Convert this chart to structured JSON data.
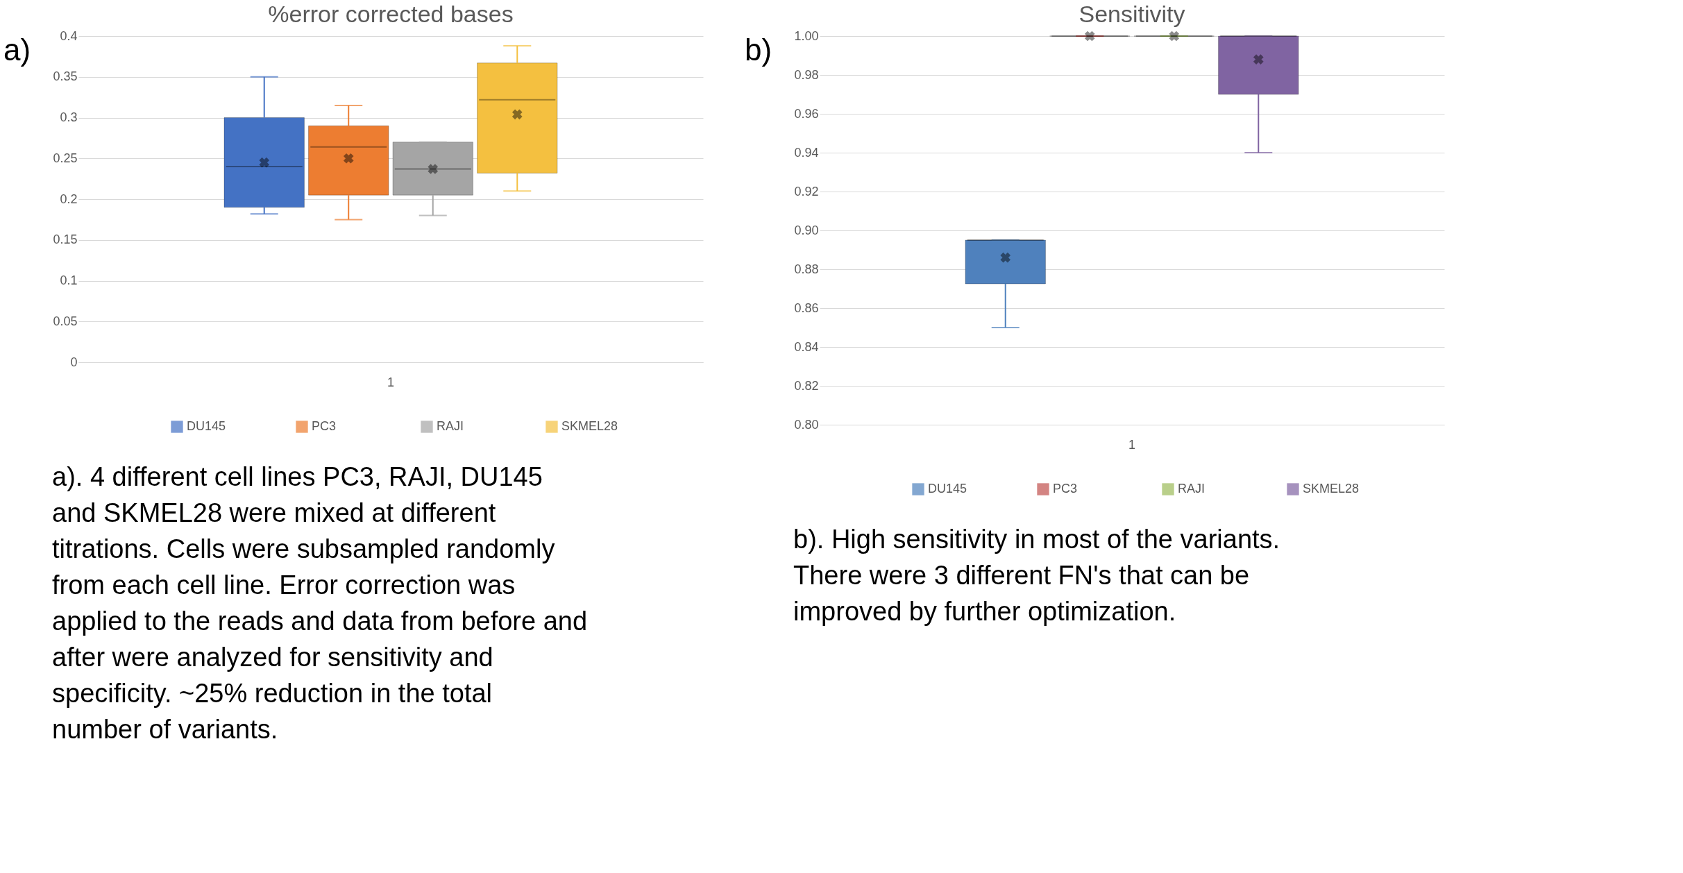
{
  "chart_data": [
    {
      "type": "box",
      "title": "%error corrected bases",
      "categories": [
        "1"
      ],
      "series": [
        {
          "name": "DU145",
          "color": "#4472c4",
          "boxes": [
            {
              "low": 0.182,
              "q1": 0.19,
              "median": 0.24,
              "q3": 0.3,
              "high": 0.35,
              "mean": 0.245
            }
          ]
        },
        {
          "name": "PC3",
          "color": "#ed7d31",
          "boxes": [
            {
              "low": 0.175,
              "q1": 0.205,
              "median": 0.264,
              "q3": 0.29,
              "high": 0.315,
              "mean": 0.25
            }
          ]
        },
        {
          "name": "RAJI",
          "color": "#a5a5a5",
          "boxes": [
            {
              "low": 0.18,
              "q1": 0.205,
              "median": 0.237,
              "q3": 0.27,
              "high": 0.27,
              "mean": 0.237
            }
          ]
        },
        {
          "name": "SKMEL28",
          "color": "#f4c040",
          "boxes": [
            {
              "low": 0.21,
              "q1": 0.232,
              "median": 0.322,
              "q3": 0.367,
              "high": 0.388,
              "mean": 0.304
            }
          ]
        }
      ],
      "ylim": [
        0,
        0.4
      ],
      "yticks": [
        0,
        0.05,
        0.1,
        0.15,
        0.2,
        0.25,
        0.3,
        0.35,
        0.4
      ],
      "grid": "y",
      "legend": "bottom",
      "annotations": [
        "a)",
        "a). 4 different cell lines PC3, RAJI, DU145 and SKMEL28 were mixed at different titrations. Cells were subsampled randomly from each cell line. Error correction was applied to the reads and data from before and after were analyzed for sensitivity and specificity. ~25% reduction in the total number of variants."
      ]
    },
    {
      "type": "box",
      "title": "Sensitivity",
      "categories": [
        "1"
      ],
      "series": [
        {
          "name": "DU145",
          "color": "#4f81bd",
          "boxes": [
            {
              "low": 0.85,
              "q1": 0.8725,
              "median": 0.895,
              "q3": 0.895,
              "high": 0.895,
              "mean": 0.886
            }
          ]
        },
        {
          "name": "PC3",
          "color": "#c0504d",
          "boxes": [
            {
              "low": 1.0,
              "q1": 1.0,
              "median": 1.0,
              "q3": 1.0,
              "high": 1.0,
              "mean": 1.0
            }
          ]
        },
        {
          "name": "RAJI",
          "color": "#9bbb59",
          "boxes": [
            {
              "low": 1.0,
              "q1": 1.0,
              "median": 1.0,
              "q3": 1.0,
              "high": 1.0,
              "mean": 1.0
            }
          ]
        },
        {
          "name": "SKMEL28",
          "color": "#8064a2",
          "boxes": [
            {
              "low": 0.94,
              "q1": 0.97,
              "median": 1.0,
              "q3": 1.0,
              "high": 1.0,
              "mean": 0.988
            }
          ]
        }
      ],
      "ylim": [
        0.8,
        1.0
      ],
      "yticks": [
        {
          "value": 0.8,
          "label": "0.80"
        },
        {
          "value": 0.82,
          "label": "0.82"
        },
        {
          "value": 0.84,
          "label": "0.84"
        },
        {
          "value": 0.86,
          "label": "0.86"
        },
        {
          "value": 0.88,
          "label": "0.88"
        },
        {
          "value": 0.9,
          "label": "0.90"
        },
        {
          "value": 0.92,
          "label": "0.92"
        },
        {
          "value": 0.94,
          "label": "0.94"
        },
        {
          "value": 0.96,
          "label": "0.96"
        },
        {
          "value": 0.98,
          "label": "0.98"
        },
        {
          "value": 1.0,
          "label": "1.00"
        }
      ],
      "grid": "y",
      "legend": "bottom",
      "annotations": [
        "b)",
        "b). High sensitivity in most of the variants. There were 3 different FN's that can be improved by further optimization."
      ]
    }
  ]
}
